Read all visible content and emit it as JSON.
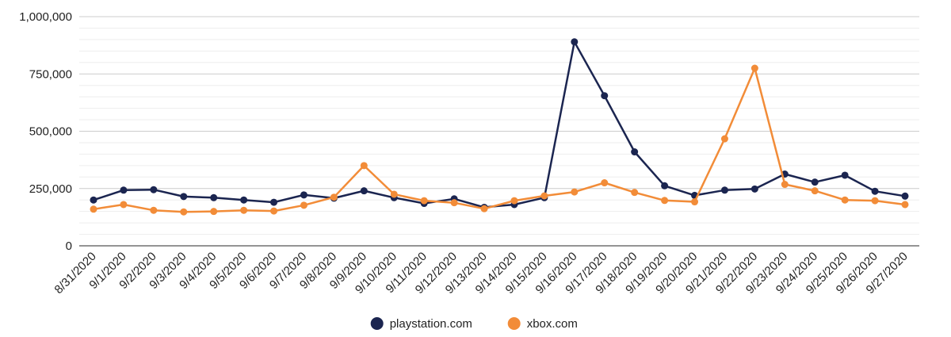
{
  "chart_data": {
    "type": "line",
    "title": "",
    "xlabel": "",
    "ylabel": "",
    "categories": [
      "8/31/2020",
      "9/1/2020",
      "9/2/2020",
      "9/3/2020",
      "9/4/2020",
      "9/5/2020",
      "9/6/2020",
      "9/7/2020",
      "9/8/2020",
      "9/9/2020",
      "9/10/2020",
      "9/11/2020",
      "9/12/2020",
      "9/13/2020",
      "9/14/2020",
      "9/15/2020",
      "9/16/2020",
      "9/17/2020",
      "9/18/2020",
      "9/19/2020",
      "9/20/2020",
      "9/21/2020",
      "9/22/2020",
      "9/23/2020",
      "9/24/2020",
      "9/25/2020",
      "9/26/2020",
      "9/27/2020"
    ],
    "ylim": [
      0,
      1000000
    ],
    "yticks": [
      {
        "value": 0,
        "label": "0"
      },
      {
        "value": 250000,
        "label": "250,000"
      },
      {
        "value": 500000,
        "label": "500,000"
      },
      {
        "value": 750000,
        "label": "750,000"
      },
      {
        "value": 1000000,
        "label": "1,000,000"
      }
    ],
    "minor_gridlines_per_major": 5,
    "grid": true,
    "legend_position": "bottom-center",
    "series": [
      {
        "name": "playstation.com",
        "color": "#1b2550",
        "values": [
          200000,
          243000,
          245000,
          215000,
          210000,
          200000,
          190000,
          222000,
          208000,
          240000,
          210000,
          185000,
          205000,
          168000,
          180000,
          210000,
          890000,
          655000,
          410000,
          262000,
          220000,
          243000,
          248000,
          313000,
          278000,
          308000,
          238000,
          217000
        ]
      },
      {
        "name": "xbox.com",
        "color": "#f28c38",
        "values": [
          160000,
          180000,
          155000,
          148000,
          150000,
          155000,
          152000,
          177000,
          212000,
          350000,
          225000,
          197000,
          188000,
          162000,
          197000,
          218000,
          235000,
          275000,
          233000,
          198000,
          192000,
          467000,
          775000,
          268000,
          240000,
          200000,
          197000,
          180000
        ]
      }
    ]
  }
}
